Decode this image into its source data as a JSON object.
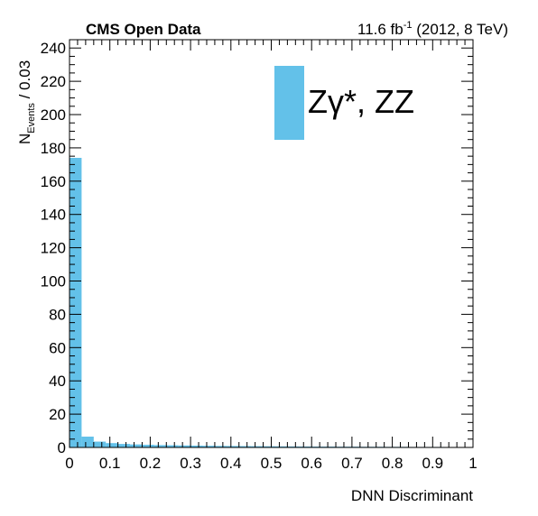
{
  "header": {
    "experiment": "CMS Open Data",
    "lumi_value": "11.6 fb",
    "lumi_sup": "-1",
    "lumi_rest": " (2012, 8 TeV)"
  },
  "colors": {
    "fill": "#63c1e9",
    "axis": "#000000"
  },
  "chart_data": {
    "type": "bar",
    "xlabel": "DNN Discriminant",
    "ylabel_main": "N",
    "ylabel_sub": "Events",
    "ylabel_tail": " / 0.03",
    "xlim": [
      0,
      1
    ],
    "ylim": [
      0,
      245
    ],
    "bin_width": 0.03,
    "xticks": [
      0,
      0.1,
      0.2,
      0.3,
      0.4,
      0.5,
      0.6,
      0.7,
      0.8,
      0.9,
      1
    ],
    "xtick_labels": [
      "0",
      "0.1",
      "0.2",
      "0.3",
      "0.4",
      "0.5",
      "0.6",
      "0.7",
      "0.8",
      "0.9",
      "1"
    ],
    "yticks": [
      0,
      20,
      40,
      60,
      80,
      100,
      120,
      140,
      160,
      180,
      200,
      220,
      240
    ],
    "ytick_labels": [
      "0",
      "20",
      "40",
      "60",
      "80",
      "100",
      "120",
      "140",
      "160",
      "180",
      "200",
      "220",
      "240"
    ],
    "series": [
      {
        "name": "Zγ*, ZZ",
        "bin_edges": [
          0,
          0.03,
          0.06,
          0.09,
          0.12,
          0.15,
          0.18,
          0.21,
          0.24,
          0.27,
          0.3,
          0.33,
          0.36,
          0.39,
          0.42,
          0.45,
          0.48,
          0.51,
          0.54,
          0.57,
          0.6,
          0.63,
          0.66,
          0.69,
          0.72,
          0.75,
          0.78,
          0.81,
          0.84,
          0.87,
          0.9,
          0.93,
          0.96,
          1.0
        ],
        "values": [
          174,
          6.5,
          3.5,
          2.6,
          2.1,
          1.8,
          1.6,
          1.4,
          1.3,
          1.2,
          1.1,
          1.0,
          0.9,
          0.85,
          0.8,
          0.75,
          0.7,
          0.65,
          0.6,
          0.55,
          0.5,
          0.5,
          0.45,
          0.45,
          0.4,
          0.4,
          0.35,
          0.35,
          0.3,
          0.3,
          0.3,
          0.25,
          0.25
        ]
      }
    ],
    "legend": "top-right"
  }
}
